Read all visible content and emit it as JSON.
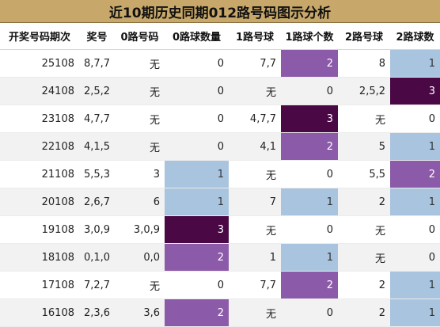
{
  "title": "近10期历史同期012路号码图示分析",
  "columns": [
    "开奖号码期次",
    "奖号",
    "0路号码",
    "0路球数量",
    "1路号球",
    "1路球个数",
    "2路号球",
    "2路球数"
  ],
  "rows": [
    {
      "issue": "25108",
      "number": "8,7,7",
      "r0": "无",
      "r0n": "0",
      "r1": "7,7",
      "r1n": "2",
      "r2": "8",
      "r2n": "1"
    },
    {
      "issue": "24108",
      "number": "2,5,2",
      "r0": "无",
      "r0n": "0",
      "r1": "无",
      "r1n": "0",
      "r2": "2,5,2",
      "r2n": "3"
    },
    {
      "issue": "23108",
      "number": "4,7,7",
      "r0": "无",
      "r0n": "0",
      "r1": "4,7,7",
      "r1n": "3",
      "r2": "无",
      "r2n": "0"
    },
    {
      "issue": "22108",
      "number": "4,1,5",
      "r0": "无",
      "r0n": "0",
      "r1": "4,1",
      "r1n": "2",
      "r2": "5",
      "r2n": "1"
    },
    {
      "issue": "21108",
      "number": "5,5,3",
      "r0": "3",
      "r0n": "1",
      "r1": "无",
      "r1n": "0",
      "r2": "5,5",
      "r2n": "2"
    },
    {
      "issue": "20108",
      "number": "2,6,7",
      "r0": "6",
      "r0n": "1",
      "r1": "7",
      "r1n": "1",
      "r2": "2",
      "r2n": "1"
    },
    {
      "issue": "19108",
      "number": "3,0,9",
      "r0": "3,0,9",
      "r0n": "3",
      "r1": "无",
      "r1n": "0",
      "r2": "无",
      "r2n": "0"
    },
    {
      "issue": "18108",
      "number": "0,1,0",
      "r0": "0,0",
      "r0n": "2",
      "r1": "1",
      "r1n": "1",
      "r2": "无",
      "r2n": "0"
    },
    {
      "issue": "17108",
      "number": "7,2,7",
      "r0": "无",
      "r0n": "0",
      "r1": "7,7",
      "r1n": "2",
      "r2": "2",
      "r2n": "1"
    },
    {
      "issue": "16108",
      "number": "2,3,6",
      "r0": "3,6",
      "r0n": "2",
      "r1": "无",
      "r1n": "0",
      "r2": "2",
      "r2n": "1"
    }
  ],
  "colors": {
    "count_1": "#a9c4de",
    "count_2": "#8b5aa8",
    "count_3": "#4a0845",
    "header": "#c8a86a"
  }
}
